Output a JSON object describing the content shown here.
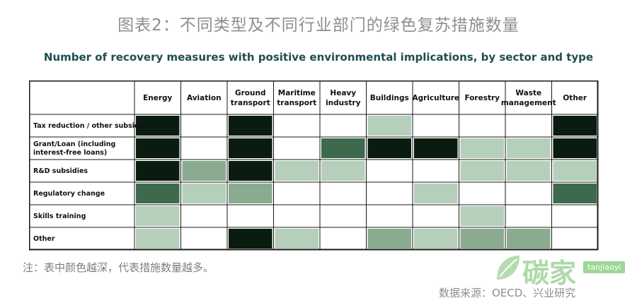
{
  "figure_title": "图表2：不同类型及不同行业部门的绿色复苏措施数量",
  "note": "注：表中颜色越深，代表措施数量越多。",
  "source": "数据来源：OECD、兴业研究",
  "watermark": {
    "text": "碳家",
    "badge": "tanjiaoyi"
  },
  "colors": {
    "level_0": "#ffffff",
    "level_1": "#b6cfbb",
    "level_2": "#8aab90",
    "level_3": "#3d6a4d",
    "level_4": "#0a1c10",
    "grid": "#1a1a1a",
    "title_text": "#1f4e4e"
  },
  "chart_data": {
    "type": "heatmap",
    "title": "Number of recovery measures with positive environmental implications, by sector and type",
    "columns": [
      "Energy",
      "Aviation",
      "Ground\ntransport",
      "Maritime\ntransport",
      "Heavy\nindustry",
      "Buildings",
      "Agriculture",
      "Forestry",
      "Waste\nmanagement",
      "Other"
    ],
    "rows": [
      "Tax reduction / other subsidy",
      "Grant/Loan (including\ninterest-free loans)",
      "R&D subsidies",
      "Regulatory change",
      "Skills training",
      "Other"
    ],
    "levels": [
      [
        4,
        0,
        4,
        0,
        0,
        1,
        0,
        0,
        0,
        4
      ],
      [
        4,
        0,
        4,
        0,
        3,
        4,
        4,
        1,
        1,
        4
      ],
      [
        4,
        2,
        4,
        1,
        1,
        0,
        0,
        1,
        1,
        1
      ],
      [
        3,
        1,
        2,
        0,
        0,
        0,
        1,
        0,
        0,
        3
      ],
      [
        1,
        0,
        0,
        0,
        0,
        0,
        0,
        1,
        0,
        0
      ],
      [
        1,
        0,
        4,
        1,
        0,
        2,
        1,
        2,
        2,
        0
      ]
    ],
    "levels_meaning": "0 = no measures (white) to 4 = most measures (darkest)"
  }
}
